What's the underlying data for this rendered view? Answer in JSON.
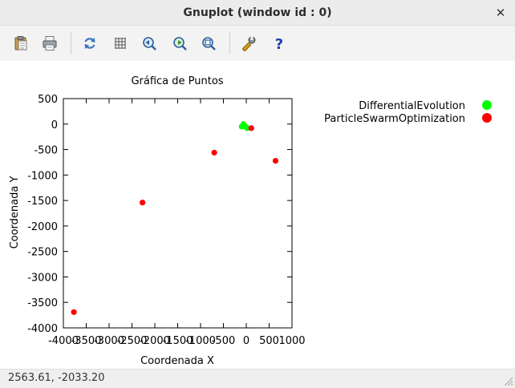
{
  "window": {
    "title": "Gnuplot (window id : 0)",
    "close_glyph": "✕"
  },
  "toolbar": {
    "items": [
      {
        "icon": "clipboard-icon"
      },
      {
        "icon": "print-icon"
      },
      {
        "icon": "replot-icon"
      },
      {
        "icon": "grid-icon"
      },
      {
        "icon": "zoom-previous-icon"
      },
      {
        "icon": "zoom-next-icon"
      },
      {
        "icon": "autoscale-icon"
      },
      {
        "icon": "settings-icon"
      },
      {
        "icon": "help-icon"
      }
    ]
  },
  "chart_data": {
    "type": "scatter",
    "title": "Gráfica de Puntos",
    "xlabel": "Coordenada X",
    "ylabel": "Coordenada Y",
    "xlim": [
      -4000,
      1000
    ],
    "ylim": [
      -4000,
      500
    ],
    "xticks": [
      -4000,
      -3500,
      -3000,
      -2500,
      -2000,
      -1500,
      -1000,
      -500,
      0,
      500,
      1000
    ],
    "yticks": [
      500,
      0,
      -500,
      -1000,
      -1500,
      -2000,
      -2500,
      -3000,
      -3500,
      -4000
    ],
    "grid": false,
    "legend_position": "top-right",
    "series": [
      {
        "name": "DifferentialEvolution",
        "color": "#00ff00",
        "points": [
          [
            -100,
            -50
          ],
          [
            -60,
            0
          ],
          [
            -30,
            -40
          ],
          [
            0,
            -60
          ],
          [
            20,
            -80
          ]
        ]
      },
      {
        "name": "ParticleSwarmOptimization",
        "color": "#ff0000",
        "points": [
          [
            -3770,
            -3690
          ],
          [
            -2270,
            -1540
          ],
          [
            -700,
            -560
          ],
          [
            110,
            -80
          ],
          [
            640,
            -720
          ]
        ]
      }
    ]
  },
  "status": {
    "coords": "2563.61, -2033.20"
  }
}
